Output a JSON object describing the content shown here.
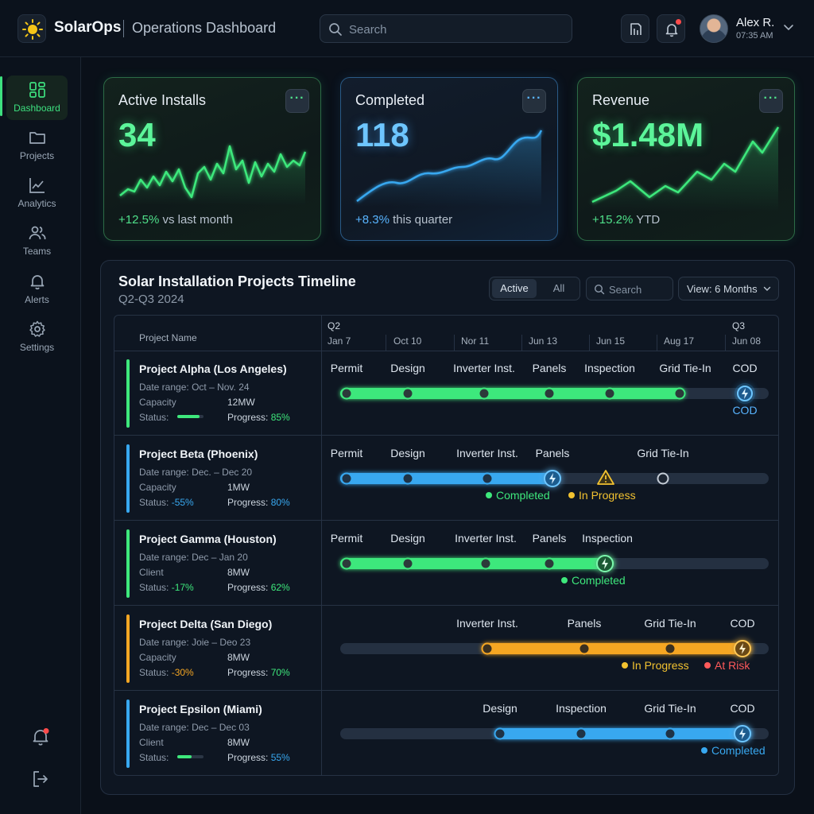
{
  "header": {
    "brand": "SolarOps",
    "subtitle": "Operations Dashboard",
    "search_placeholder": "Search",
    "user": {
      "name": "Alex R.",
      "time": "07:35 AM"
    },
    "icons": [
      "sun-logo-icon",
      "search-icon",
      "reports-icon",
      "bell-icon",
      "chevron-down-icon"
    ]
  },
  "sidebar": {
    "items": [
      {
        "label": "Dashboard",
        "icon": "dashboard-icon",
        "active": true
      },
      {
        "label": "Projects",
        "icon": "folder-icon",
        "active": false
      },
      {
        "label": "Analytics",
        "icon": "chart-line-icon",
        "active": false
      },
      {
        "label": "Teams",
        "icon": "users-icon",
        "active": false
      },
      {
        "label": "Alerts",
        "icon": "bell-icon",
        "active": false
      },
      {
        "label": "Settings",
        "icon": "gear-icon",
        "active": false
      }
    ],
    "bottom_icons": [
      "notifications-bell-icon",
      "logout-icon"
    ]
  },
  "kpis": [
    {
      "title": "Active Installs",
      "value": "34",
      "delta": "+12.5%",
      "delta_text": " vs last month",
      "color": "#4fe08a"
    },
    {
      "title": "Completed",
      "value": "118",
      "delta": "+8.3%",
      "delta_text": " this quarter",
      "color": "#58b4ff"
    },
    {
      "title": "Revenue",
      "value": "$1.48M",
      "delta": "+15.2%",
      "delta_text": " YTD",
      "color": "#4fe08a"
    }
  ],
  "timeline": {
    "title": "Solar Installation Projects Timeline",
    "subtitle": "Q2-Q3 2024",
    "toggle": {
      "active": "Active",
      "all": "All"
    },
    "search_placeholder": "Search",
    "view": "View: 6 Months",
    "header": {
      "name_col": "Project Name",
      "quarters": [
        "Q2",
        "Q3"
      ],
      "dates": [
        "Jan 7",
        "Oct 10",
        "Nor 11",
        "Jun 13",
        "Jun 15",
        "Aug 17",
        "Jun 08"
      ]
    },
    "legend": {
      "completed": "Completed",
      "in_progress": "In Progress",
      "at_risk": "At Risk",
      "cod": "COD"
    },
    "colors": {
      "green": "#3ee87c",
      "blue": "#38a8f0",
      "orange": "#f5a623",
      "yellow": "#f2c230",
      "red": "#ff5a5a"
    },
    "projects": [
      {
        "name": "Project Alpha (Los Angeles)",
        "range_label": "Date range:",
        "range": "Oct – Nov. 24",
        "field_label": "Capacity",
        "field_value": "12MW",
        "status_label": "Status:",
        "status_value": "",
        "progress_label": "Progress:",
        "progress": "85%",
        "progress_fraction": 0.85,
        "color": "#3ee87c",
        "milestones": [
          "Permit",
          "Design",
          "Inverter Inst.",
          "Panels",
          "Inspection",
          "Grid Tie-In",
          "COD"
        ],
        "cod_label": "COD"
      },
      {
        "name": "Project Beta (Phoenix)",
        "range_label": "Date range:",
        "range": "Dec. – Dec 20",
        "field_label": "Capacity",
        "field_value": "1MW",
        "status_label": "Status:",
        "status_value": "-55%",
        "progress_label": "Progress:",
        "progress": "80%",
        "color": "#38a8f0",
        "milestones": [
          "Permit",
          "Design",
          "Inverter Inst.",
          "Panels",
          "Grid Tie-In"
        ]
      },
      {
        "name": "Project Gamma (Houston)",
        "range_label": "Date range:",
        "range": "Dec – Jan 20",
        "field_label": "Client",
        "field_value": "8MW",
        "status_label": "Status:",
        "status_value": "-17%",
        "progress_label": "Progress:",
        "progress": "62%",
        "color": "#3ee87c",
        "milestones": [
          "Permit",
          "Design",
          "Inverter Inst.",
          "Panels",
          "Inspection"
        ]
      },
      {
        "name": "Project Delta (San Diego)",
        "range_label": "Date range:",
        "range": "Joie – Deo 23",
        "field_label": "Capacity",
        "field_value": "8MW",
        "status_label": "Status:",
        "status_value": "-30%",
        "progress_label": "Progress:",
        "progress": "70%",
        "color": "#f5a623",
        "milestones": [
          "Inverter Inst.",
          "Panels",
          "Grid Tie-In",
          "COD"
        ]
      },
      {
        "name": "Project Epsilon (Miami)",
        "range_label": "Date range:",
        "range": "Dec – Dec 03",
        "field_label": "Client",
        "field_value": "8MW",
        "status_label": "Status:",
        "status_value": "",
        "progress_label": "Progress:",
        "progress": "55%",
        "progress_fraction": 0.55,
        "color": "#38a8f0",
        "milestones": [
          "Design",
          "Inspection",
          "Grid Tie-In",
          "COD"
        ]
      }
    ]
  }
}
